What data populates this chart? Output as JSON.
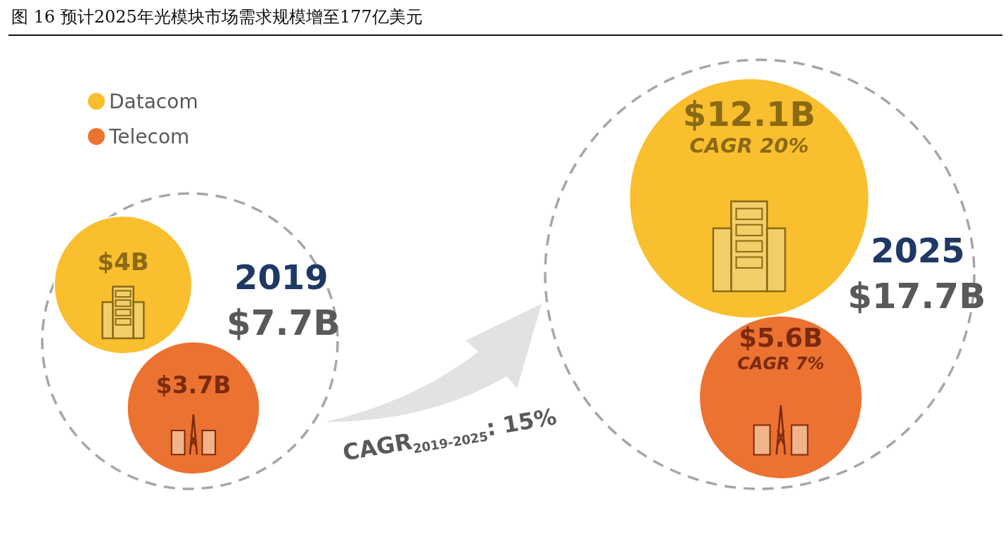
{
  "chart_data": {
    "type": "other",
    "title": "图 16 预计2025年光模块市场需求规模增至177亿美元",
    "categories": [
      "2019",
      "2025"
    ],
    "totals": [
      "$7.7B",
      "$17.7B"
    ],
    "series": [
      {
        "name": "Datacom",
        "color": "#f9bf2f",
        "values": [
          4,
          12.1
        ],
        "value_labels": [
          "$4B",
          "$12.1B"
        ]
      },
      {
        "name": "Telecom",
        "color": "#ec7232",
        "values": [
          3.7,
          5.6
        ],
        "value_labels": [
          "$3.7B",
          "$5.6B"
        ]
      }
    ],
    "annotations": [
      "CAGR 20%",
      "CAGR 7%",
      "CAGR$_{2019-2025}$: 15%"
    ],
    "legend": "top left"
  }
}
